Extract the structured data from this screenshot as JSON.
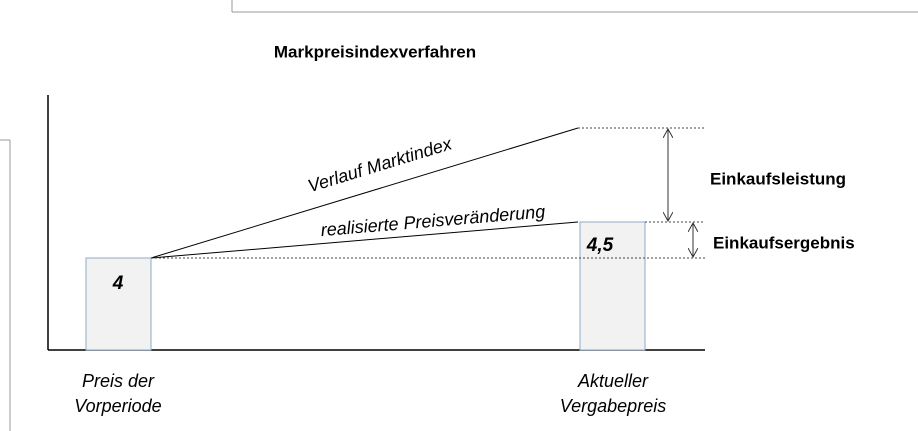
{
  "title": "Markpreisindexverfahren",
  "bars": [
    {
      "label": "4"
    },
    {
      "label": "4,5"
    }
  ],
  "lines": [
    {
      "label": "Verlauf Marktindex"
    },
    {
      "label": "realisierte Preisveränderung"
    }
  ],
  "measures": [
    {
      "label": "Einkaufsleistung"
    },
    {
      "label": "Einkaufsergebnis"
    }
  ],
  "x_labels": [
    {
      "lines": [
        "Preis der",
        "Vorperiode"
      ]
    },
    {
      "lines": [
        "Aktueller",
        "Vergabepreis"
      ]
    }
  ]
}
